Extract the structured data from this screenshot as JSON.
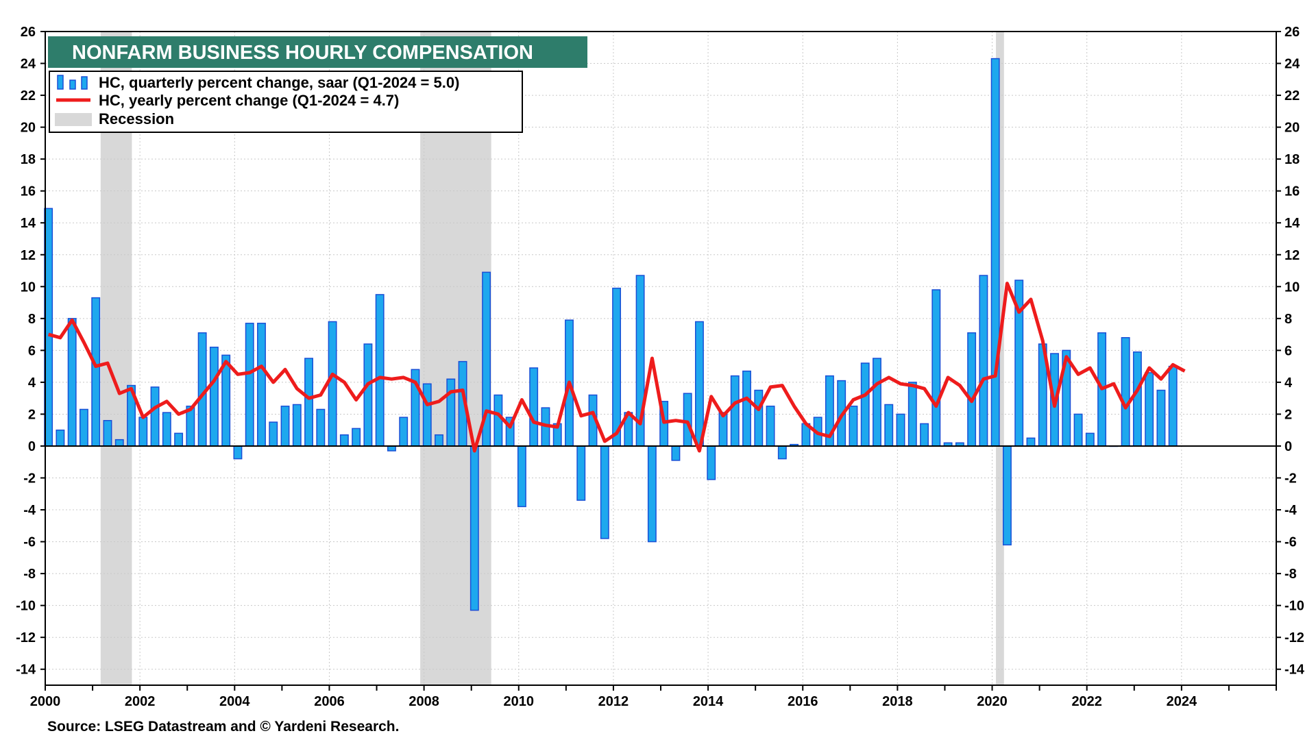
{
  "chart_data": {
    "type": "bar",
    "title": "NONFARM BUSINESS HOURLY COMPENSATION",
    "source": "Source: LSEG Datastream and © Yardeni Research.",
    "ylim": [
      -15,
      26
    ],
    "yticks": [
      26,
      24,
      22,
      20,
      18,
      16,
      14,
      12,
      10,
      8,
      6,
      4,
      2,
      0,
      -2,
      -4,
      -6,
      -8,
      -10,
      -12,
      -14
    ],
    "xlim": [
      2000,
      2026
    ],
    "xticks": [
      2000,
      2002,
      2004,
      2006,
      2008,
      2010,
      2012,
      2014,
      2016,
      2018,
      2020,
      2022,
      2024
    ],
    "start_year": 2000,
    "legend": {
      "bars_label": "HC, quarterly percent change, saar (Q1-2024 = 5.0)",
      "line_label": "HC, yearly percent change (Q1-2024 = 4.7)",
      "recession_label": "Recession"
    },
    "recessions": [
      [
        2001.17,
        2001.83
      ],
      [
        2007.92,
        2009.42
      ],
      [
        2020.08,
        2020.25
      ]
    ],
    "series": [
      {
        "name": "HC, quarterly percent change, saar",
        "kind": "bar",
        "color": "#1ea8ee",
        "edge_color": "#1a4fd6",
        "values": [
          14.9,
          1.0,
          8.0,
          2.3,
          9.3,
          1.6,
          0.4,
          3.8,
          1.8,
          3.7,
          2.1,
          0.8,
          2.5,
          7.1,
          6.2,
          5.7,
          -0.8,
          7.7,
          7.7,
          1.5,
          2.5,
          2.6,
          5.5,
          2.3,
          7.8,
          0.7,
          1.1,
          6.4,
          9.5,
          -0.3,
          1.8,
          4.8,
          3.9,
          0.7,
          4.2,
          5.3,
          -10.3,
          10.9,
          3.2,
          1.8,
          -3.8,
          4.9,
          2.4,
          1.4,
          7.9,
          -3.4,
          3.2,
          -5.8,
          9.9,
          2.1,
          10.7,
          -6.0,
          2.8,
          -0.9,
          3.3,
          7.8,
          -2.1,
          2.1,
          4.4,
          4.7,
          3.5,
          2.5,
          -0.8,
          0.1,
          1.4,
          1.8,
          4.4,
          4.1,
          2.5,
          5.2,
          5.5,
          2.6,
          2.0,
          4.0,
          1.4,
          9.8,
          0.2,
          0.2,
          7.1,
          10.7,
          24.3,
          -6.2,
          10.4,
          0.5,
          6.4,
          5.8,
          6.0,
          2.0,
          0.8,
          7.1,
          0.0,
          6.8,
          5.9,
          4.6,
          3.5,
          5.0
        ]
      },
      {
        "name": "HC, yearly percent change",
        "kind": "line",
        "color": "#ee1c1c",
        "values": [
          7.0,
          6.8,
          7.9,
          6.5,
          5.0,
          5.2,
          3.3,
          3.6,
          1.8,
          2.4,
          2.8,
          2.0,
          2.3,
          3.2,
          4.1,
          5.3,
          4.5,
          4.6,
          5.0,
          4.0,
          4.8,
          3.6,
          3.0,
          3.2,
          4.5,
          4.0,
          2.9,
          3.9,
          4.3,
          4.2,
          4.3,
          4.0,
          2.6,
          2.8,
          3.4,
          3.5,
          -0.3,
          2.2,
          2.0,
          1.2,
          2.9,
          1.5,
          1.3,
          1.2,
          4.0,
          1.9,
          2.1,
          0.3,
          0.8,
          2.1,
          1.4,
          5.5,
          1.5,
          1.6,
          1.5,
          -0.3,
          3.1,
          1.9,
          2.7,
          3.0,
          2.3,
          3.7,
          3.8,
          2.5,
          1.4,
          0.8,
          0.6,
          1.9,
          2.9,
          3.2,
          3.9,
          4.3,
          3.9,
          3.8,
          3.6,
          2.5,
          4.3,
          3.8,
          2.8,
          4.2,
          4.4,
          10.2,
          8.4,
          9.2,
          6.6,
          2.5,
          5.6,
          4.5,
          4.9,
          3.6,
          3.9,
          2.4,
          3.5,
          4.9,
          4.2,
          5.1,
          4.7
        ]
      }
    ]
  },
  "colors": {
    "title_bg": "#2e7d6b",
    "recession_fill": "#d8d8d8",
    "grid": "#c8c8c8",
    "axis": "#000000"
  }
}
